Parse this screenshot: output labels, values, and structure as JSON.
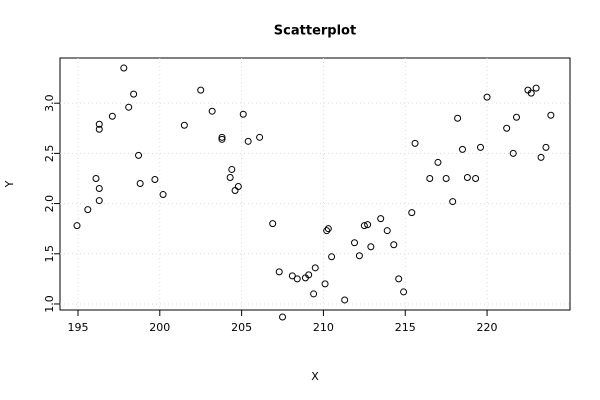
{
  "chart_data": {
    "type": "scatter",
    "title": "Scatterplot",
    "x_label": "X",
    "y_label": "Y",
    "color": "#000000",
    "grid": true,
    "xlim": [
      193.9,
      225.07
    ],
    "ylim": [
      0.94,
      3.45
    ],
    "xticks": [
      195,
      200,
      205,
      210,
      215,
      220
    ],
    "yticks": [
      {
        "value": 1.0,
        "label": "1.0"
      },
      1.5,
      {
        "value": 2.0,
        "label": "2.0"
      },
      2.5,
      {
        "value": 3.0,
        "label": "3.0"
      }
    ],
    "x": [
      194.94,
      195.6,
      196.1,
      196.3,
      196.3,
      196.3,
      196.3,
      197.1,
      197.8,
      198.1,
      198.4,
      198.7,
      198.8,
      199.7,
      200.2,
      201.5,
      202.5,
      203.2,
      203.8,
      203.8,
      204.3,
      204.4,
      204.6,
      204.8,
      205.1,
      205.4,
      206.1,
      206.9,
      207.3,
      207.5,
      208.1,
      208.4,
      208.9,
      209.1,
      209.4,
      209.5,
      210.1,
      210.2,
      210.3,
      210.5,
      211.3,
      211.9,
      212.2,
      212.5,
      212.7,
      212.9,
      213.5,
      213.9,
      214.3,
      214.6,
      214.9,
      215.4,
      215.6,
      216.5,
      217.0,
      217.5,
      217.9,
      218.2,
      218.5,
      218.8,
      219.3,
      219.6,
      220.0,
      221.2,
      221.6,
      221.8,
      222.5,
      222.7,
      223.0,
      223.3,
      223.6,
      223.9
    ],
    "values": [
      1.78,
      1.94,
      2.25,
      2.15,
      2.03,
      2.79,
      2.74,
      2.87,
      3.35,
      2.96,
      3.09,
      2.48,
      2.2,
      2.24,
      2.09,
      2.78,
      3.13,
      2.92,
      2.66,
      2.64,
      2.26,
      2.34,
      2.13,
      2.17,
      2.89,
      2.62,
      2.66,
      1.8,
      1.32,
      0.87,
      1.28,
      1.25,
      1.26,
      1.29,
      1.1,
      1.36,
      1.2,
      1.73,
      1.75,
      1.47,
      1.04,
      1.61,
      1.48,
      1.78,
      1.79,
      1.57,
      1.85,
      1.73,
      1.59,
      1.25,
      1.12,
      1.91,
      2.6,
      2.25,
      2.41,
      2.25,
      2.02,
      2.85,
      2.54,
      2.26,
      2.25,
      2.56,
      3.06,
      2.75,
      2.5,
      2.86,
      3.13,
      3.1,
      3.15,
      2.46,
      2.56,
      2.88
    ]
  }
}
